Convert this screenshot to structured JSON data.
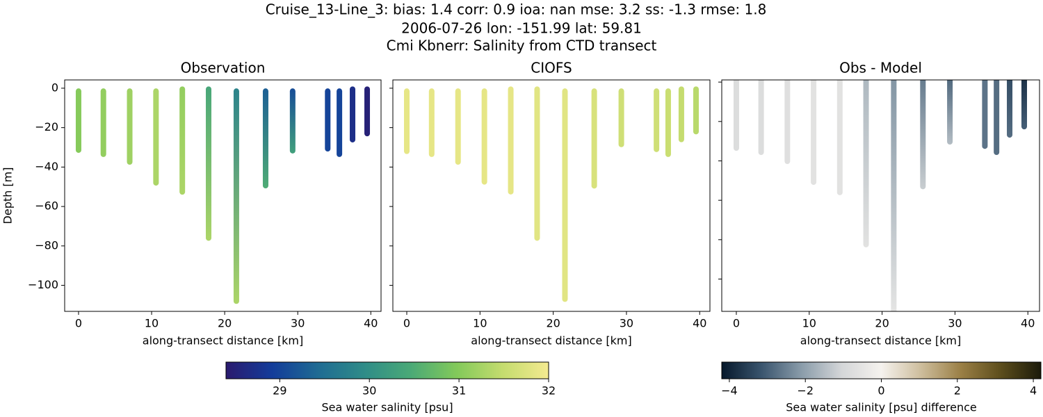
{
  "suptitle": [
    "Cruise_13-Line_3: bias: 1.4  corr: 0.9  ioa: nan  mse: 3.2  ss: -1.3  rmse: 1.8",
    "2006-07-26 lon: -151.99 lat: 59.81",
    "Cmi Kbnerr: Salinity from CTD transect"
  ],
  "colorbars": [
    {
      "label": "Sea water salinity [psu]",
      "lim": [
        28.4,
        32
      ],
      "ticks": [
        29,
        30,
        31,
        32
      ],
      "cmap": [
        "#2a1a6e",
        "#133c9a",
        "#1f6b93",
        "#2f8c88",
        "#4aa977",
        "#82c95a",
        "#c4dc6e",
        "#f4ea90"
      ]
    },
    {
      "label": "Sea water salinity [psu] difference",
      "lim": [
        -4.2,
        4.2
      ],
      "ticks": [
        {
          "value": -4,
          "label": "−4"
        },
        {
          "value": -2,
          "label": "−2"
        },
        0,
        2,
        4
      ],
      "cmap": [
        "#06182b",
        "#3a556e",
        "#8a9caa",
        "#d4d6d8",
        "#f5f2ee",
        "#cdbd9c",
        "#9a7f45",
        "#5c4d1c",
        "#1b1a0a"
      ]
    }
  ],
  "chart_data": [
    {
      "type": "scatter",
      "title": "Observation",
      "xlabel": "along-transect distance [km]",
      "ylabel": "Depth [m]",
      "colorbar": 0,
      "xlim": [
        -1.9,
        41.4
      ],
      "xticks": [
        0,
        10,
        20,
        30,
        40
      ],
      "ylim": [
        -113.2,
        4.2
      ],
      "yticks": [
        0,
        {
          "value": -20,
          "label": "−20"
        },
        {
          "value": -40,
          "label": "−40"
        },
        {
          "value": -60,
          "label": "−60"
        },
        {
          "value": -80,
          "label": "−80"
        },
        {
          "value": -100,
          "label": "−100"
        }
      ],
      "ytick_labels": true,
      "stations": [
        {
          "x": 0,
          "depth": [
            -1.5,
            -31.4
          ],
          "values": [
            31.0,
            31.0
          ]
        },
        {
          "x": 3.4,
          "depth": [
            -1.5,
            -33.5
          ],
          "values": [
            31.1,
            31.1
          ]
        },
        {
          "x": 7.0,
          "depth": [
            -1.5,
            -37.4
          ],
          "values": [
            31.2,
            31.2
          ]
        },
        {
          "x": 10.6,
          "depth": [
            -1.5,
            -48
          ],
          "values": [
            31.3,
            31.3
          ]
        },
        {
          "x": 14.2,
          "depth": [
            -0.5,
            -52.6
          ],
          "values": [
            31.1,
            31.3
          ]
        },
        {
          "x": 17.8,
          "depth": [
            -0.5,
            -76
          ],
          "values": [
            30.4,
            31.3
          ]
        },
        {
          "x": 21.6,
          "depth": [
            -1.5,
            -108
          ],
          "values": [
            29.8,
            31.3
          ]
        },
        {
          "x": 25.6,
          "depth": [
            -1.5,
            -49.4
          ],
          "values": [
            29.3,
            30.5
          ]
        },
        {
          "x": 29.3,
          "depth": [
            -1.5,
            -31.7
          ],
          "values": [
            29.1,
            30.3
          ]
        },
        {
          "x": 34.1,
          "depth": [
            -1.5,
            -30.7
          ],
          "values": [
            29.0,
            29.0
          ]
        },
        {
          "x": 35.7,
          "depth": [
            -1.5,
            -33.5
          ],
          "values": [
            29.0,
            29.0
          ]
        },
        {
          "x": 37.5,
          "depth": [
            -0.5,
            -26.1
          ],
          "values": [
            28.7,
            28.7
          ]
        },
        {
          "x": 39.5,
          "depth": [
            -0.5,
            -23
          ],
          "values": [
            28.5,
            28.5
          ]
        }
      ]
    },
    {
      "type": "scatter",
      "title": "CIOFS",
      "xlabel": "along-transect distance [km]",
      "colorbar": 0,
      "xlim": [
        -1.9,
        41.4
      ],
      "xticks": [
        0,
        10,
        20,
        30,
        40
      ],
      "ylim": [
        -113.2,
        4.2
      ],
      "yticks": [
        0,
        -20,
        -40,
        -60,
        -80,
        -100
      ],
      "ytick_labels": false,
      "stations": [
        {
          "x": 0,
          "depth": [
            -1.5,
            -32
          ],
          "values": [
            31.85,
            31.85
          ]
        },
        {
          "x": 3.4,
          "depth": [
            -1.5,
            -33.5
          ],
          "values": [
            31.85,
            31.85
          ]
        },
        {
          "x": 7.0,
          "depth": [
            -1.5,
            -37.4
          ],
          "values": [
            31.85,
            31.85
          ]
        },
        {
          "x": 10.6,
          "depth": [
            -1.5,
            -47.5
          ],
          "values": [
            31.85,
            31.85
          ]
        },
        {
          "x": 14.2,
          "depth": [
            -0.5,
            -52.5
          ],
          "values": [
            31.85,
            31.85
          ]
        },
        {
          "x": 17.8,
          "depth": [
            -0.5,
            -76
          ],
          "values": [
            31.8,
            31.8
          ]
        },
        {
          "x": 21.6,
          "depth": [
            -1.5,
            -107
          ],
          "values": [
            31.8,
            31.8
          ]
        },
        {
          "x": 25.6,
          "depth": [
            -1.5,
            -49.5
          ],
          "values": [
            31.7,
            31.7
          ]
        },
        {
          "x": 29.3,
          "depth": [
            -1.5,
            -28.5
          ],
          "values": [
            31.6,
            31.6
          ]
        },
        {
          "x": 34.1,
          "depth": [
            -1.5,
            -31
          ],
          "values": [
            31.6,
            31.6
          ]
        },
        {
          "x": 35.7,
          "depth": [
            -1.5,
            -33.5
          ],
          "values": [
            31.55,
            31.55
          ]
        },
        {
          "x": 37.5,
          "depth": [
            -0.5,
            -26
          ],
          "values": [
            31.5,
            31.5
          ]
        },
        {
          "x": 39.5,
          "depth": [
            -0.5,
            -22
          ],
          "values": [
            31.4,
            31.4
          ]
        }
      ]
    },
    {
      "type": "scatter",
      "title": "Obs - Model",
      "xlabel": "along-transect distance [km]",
      "colorbar": 1,
      "xlim": [
        -2.0,
        41.6
      ],
      "xticks": [
        0,
        10,
        20,
        30,
        40
      ],
      "ylim": [
        -116.4,
        1.1
      ],
      "yticks": [
        0,
        -20,
        -40,
        -60,
        -80,
        -100
      ],
      "ytick_labels": false,
      "stations": [
        {
          "x": 0,
          "depth": [
            1,
            -33.5
          ],
          "values": [
            -0.8,
            -0.8
          ]
        },
        {
          "x": 3.4,
          "depth": [
            1,
            -35.6
          ],
          "values": [
            -0.8,
            -0.8
          ]
        },
        {
          "x": 7.0,
          "depth": [
            1,
            -40.2
          ],
          "values": [
            -0.7,
            -0.7
          ]
        },
        {
          "x": 10.6,
          "depth": [
            1,
            -50.8
          ],
          "values": [
            -0.6,
            -0.6
          ]
        },
        {
          "x": 14.2,
          "depth": [
            1,
            -56
          ],
          "values": [
            -0.6,
            -0.6
          ]
        },
        {
          "x": 17.8,
          "depth": [
            1,
            -82.5
          ],
          "values": [
            -1.6,
            -0.6
          ]
        },
        {
          "x": 21.6,
          "depth": [
            1,
            -116
          ],
          "values": [
            -2.2,
            -0.5
          ]
        },
        {
          "x": 25.6,
          "depth": [
            1,
            -53
          ],
          "values": [
            -2.6,
            -1.2
          ]
        },
        {
          "x": 29.3,
          "depth": [
            1,
            -30.3
          ],
          "values": [
            -2.9,
            -1.5
          ]
        },
        {
          "x": 34.1,
          "depth": [
            1,
            -32.5
          ],
          "values": [
            -2.7,
            -2.7
          ]
        },
        {
          "x": 35.7,
          "depth": [
            1,
            -35.6
          ],
          "values": [
            -2.8,
            -2.8
          ]
        },
        {
          "x": 37.5,
          "depth": [
            1,
            -26.8
          ],
          "values": [
            -3.3,
            -2.8
          ]
        },
        {
          "x": 39.5,
          "depth": [
            1,
            -22.6
          ],
          "values": [
            -3.8,
            -3.0
          ]
        }
      ]
    }
  ]
}
